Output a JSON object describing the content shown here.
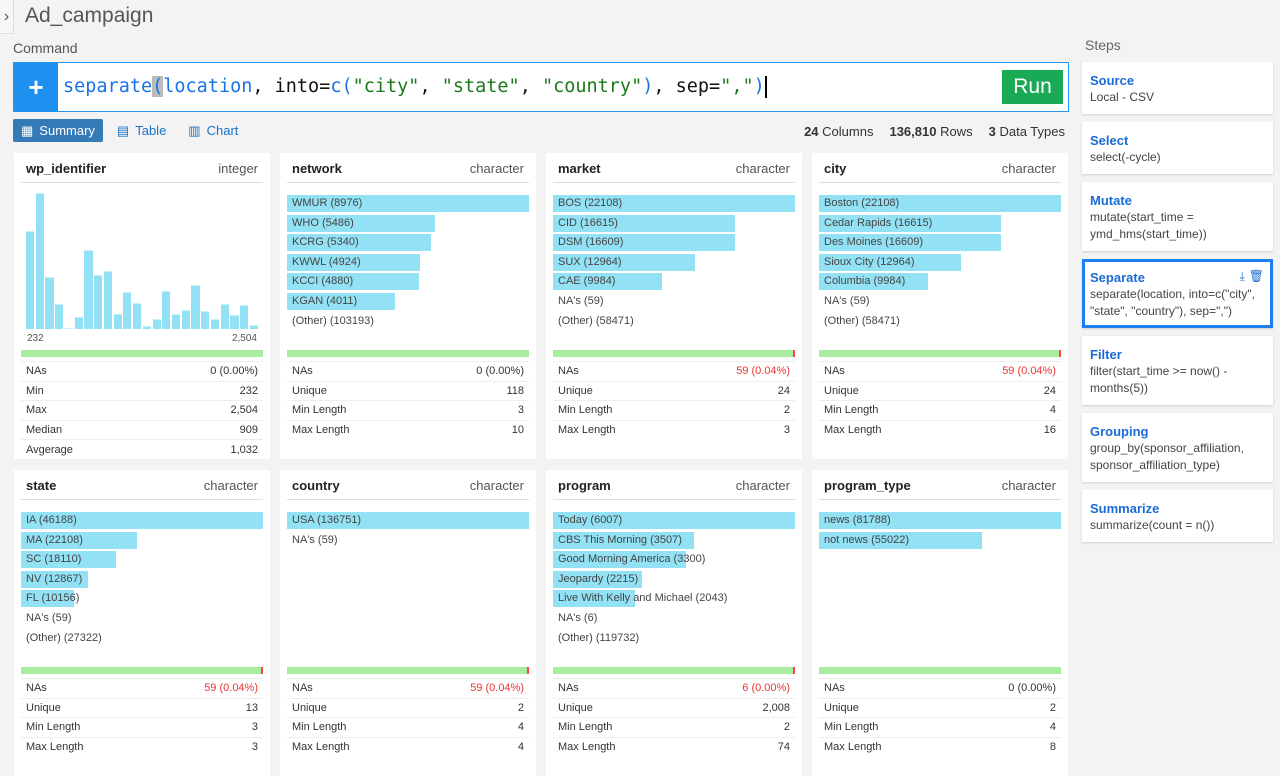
{
  "app": {
    "title": "Ad_campaign",
    "command_label": "Command",
    "steps_label": "Steps"
  },
  "command": {
    "plus": "+",
    "parts": [
      {
        "t": "separate",
        "c": "f"
      },
      {
        "t": "(",
        "c": "f hl"
      },
      {
        "t": "location",
        "c": "f"
      },
      {
        "t": ", into=",
        "c": "k"
      },
      {
        "t": "c(",
        "c": "f"
      },
      {
        "t": "\"city\"",
        "c": "s"
      },
      {
        "t": ", ",
        "c": "k"
      },
      {
        "t": "\"state\"",
        "c": "s"
      },
      {
        "t": ", ",
        "c": "k"
      },
      {
        "t": "\"country\"",
        "c": "s"
      },
      {
        "t": ")",
        "c": "f"
      },
      {
        "t": ", sep=",
        "c": "k"
      },
      {
        "t": "\",\"",
        "c": "s"
      },
      {
        "t": ")",
        "c": "f"
      }
    ],
    "run": "Run"
  },
  "views": [
    {
      "label": "Summary",
      "icon": "grid-icon",
      "active": true
    },
    {
      "label": "Table",
      "icon": "table-icon"
    },
    {
      "label": "Chart",
      "icon": "bar-chart-icon"
    }
  ],
  "summary": {
    "columns": "24",
    "columns_label": "Columns",
    "rows": "136,810",
    "rows_label": "Rows",
    "types": "3",
    "types_label": "Data Types"
  },
  "colors": {
    "bar": "#93e1f4",
    "na_ok": "#a8eca0",
    "na_warn": "#ff4444",
    "accent": "#1e90f0",
    "run": "#1aaa55"
  },
  "cards": [
    {
      "name": "wp_identifier",
      "type": "integer",
      "histogram": [
        97,
        135,
        52,
        25,
        1,
        12,
        78,
        54,
        58,
        15,
        37,
        26,
        3,
        10,
        38,
        15,
        19,
        44,
        18,
        10,
        25,
        14,
        24,
        4
      ],
      "min": "232",
      "max": "2,504",
      "na_warn": false,
      "stats": [
        [
          "NAs",
          "0 (0.00%)"
        ],
        [
          "Min",
          "232"
        ],
        [
          "Max",
          "2,504"
        ],
        [
          "Median",
          "909"
        ],
        [
          "Avgerage",
          "1,032"
        ]
      ]
    },
    {
      "name": "network",
      "type": "character",
      "items": [
        [
          "WMUR (8976)",
          8976
        ],
        [
          "WHO (5486)",
          5486
        ],
        [
          "KCRG (5340)",
          5340
        ],
        [
          "KWWL (4924)",
          4924
        ],
        [
          "KCCI (4880)",
          4880
        ],
        [
          "KGAN (4011)",
          4011
        ],
        [
          "(Other) (103193)",
          0
        ]
      ],
      "na_warn": false,
      "stats": [
        [
          "NAs",
          "0 (0.00%)"
        ],
        [
          "Unique",
          "118"
        ],
        [
          "Min Length",
          "3"
        ],
        [
          "Max Length",
          "10"
        ]
      ]
    },
    {
      "name": "market",
      "type": "character",
      "items": [
        [
          "BOS (22108)",
          22108
        ],
        [
          "CID (16615)",
          16615
        ],
        [
          "DSM (16609)",
          16609
        ],
        [
          "SUX (12964)",
          12964
        ],
        [
          "CAE (9984)",
          9984
        ],
        [
          "NA's (59)",
          0
        ],
        [
          "(Other) (58471)",
          0
        ]
      ],
      "na_warn": true,
      "stats": [
        [
          "NAs",
          "59 (0.04%)"
        ],
        [
          "Unique",
          "24"
        ],
        [
          "Min Length",
          "2"
        ],
        [
          "Max Length",
          "3"
        ]
      ]
    },
    {
      "name": "city",
      "type": "character",
      "items": [
        [
          "Boston (22108)",
          22108
        ],
        [
          "Cedar Rapids (16615)",
          16615
        ],
        [
          "Des Moines (16609)",
          16609
        ],
        [
          "Sioux City (12964)",
          12964
        ],
        [
          "Columbia (9984)",
          9984
        ],
        [
          "NA's (59)",
          0
        ],
        [
          "(Other) (58471)",
          0
        ]
      ],
      "na_warn": true,
      "stats": [
        [
          "NAs",
          "59 (0.04%)"
        ],
        [
          "Unique",
          "24"
        ],
        [
          "Min Length",
          "4"
        ],
        [
          "Max Length",
          "16"
        ]
      ]
    },
    {
      "name": "state",
      "type": "character",
      "items": [
        [
          "IA (46188)",
          46188
        ],
        [
          "MA (22108)",
          22108
        ],
        [
          "SC (18110)",
          18110
        ],
        [
          "NV (12867)",
          12867
        ],
        [
          "FL (10156)",
          10156
        ],
        [
          "NA's (59)",
          0
        ],
        [
          "(Other) (27322)",
          0
        ]
      ],
      "na_warn": true,
      "stats": [
        [
          "NAs",
          "59 (0.04%)"
        ],
        [
          "Unique",
          "13"
        ],
        [
          "Min Length",
          "3"
        ],
        [
          "Max Length",
          "3"
        ]
      ]
    },
    {
      "name": "country",
      "type": "character",
      "items": [
        [
          "USA (136751)",
          136751
        ],
        [
          "NA's (59)",
          0
        ]
      ],
      "na_warn": true,
      "stats": [
        [
          "NAs",
          "59 (0.04%)"
        ],
        [
          "Unique",
          "2"
        ],
        [
          "Min Length",
          "4"
        ],
        [
          "Max Length",
          "4"
        ]
      ]
    },
    {
      "name": "program",
      "type": "character",
      "items": [
        [
          "Today (6007)",
          6007
        ],
        [
          "CBS This Morning (3507)",
          3507
        ],
        [
          "Good Morning America (3300)",
          3300
        ],
        [
          "Jeopardy (2215)",
          2215
        ],
        [
          "Live With Kelly and Michael (2043)",
          2043
        ],
        [
          "NA's (6)",
          0
        ],
        [
          "(Other) (119732)",
          0
        ]
      ],
      "na_warn": true,
      "stats": [
        [
          "NAs",
          "6 (0.00%)"
        ],
        [
          "Unique",
          "2,008"
        ],
        [
          "Min Length",
          "2"
        ],
        [
          "Max Length",
          "74"
        ]
      ]
    },
    {
      "name": "program_type",
      "type": "character",
      "items": [
        [
          "news (81788)",
          81788
        ],
        [
          "not news (55022)",
          55022
        ]
      ],
      "na_warn": false,
      "stats": [
        [
          "NAs",
          "0 (0.00%)"
        ],
        [
          "Unique",
          "2"
        ],
        [
          "Min Length",
          "4"
        ],
        [
          "Max Length",
          "8"
        ]
      ]
    }
  ],
  "steps": [
    {
      "title": "Source",
      "body": "Local - CSV"
    },
    {
      "title": "Select",
      "body": "select(-cycle)"
    },
    {
      "title": "Mutate",
      "body": "mutate(start_time = ymd_hms(start_time))"
    },
    {
      "title": "Separate",
      "body": "separate(location, into=c(\"city\", \"state\", \"country\"), sep=\",\")",
      "selected": true
    },
    {
      "title": "Filter",
      "body": "filter(start_time >= now() - months(5))"
    },
    {
      "title": "Grouping",
      "body": "group_by(sponsor_affiliation, sponsor_affiliation_type)"
    },
    {
      "title": "Summarize",
      "body": "summarize(count = n())"
    }
  ]
}
